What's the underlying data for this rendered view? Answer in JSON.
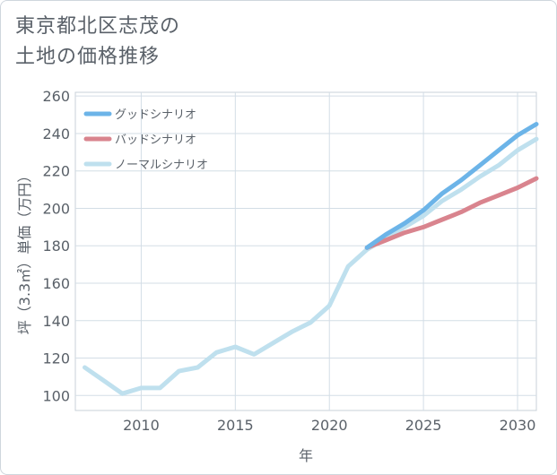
{
  "title_line1": "東京都北区志茂の",
  "title_line2": "土地の価格推移",
  "chart_data": {
    "type": "line",
    "xlabel": "年",
    "ylabel": "坪（3.3㎡）単価（万円）",
    "xlim": [
      2006.5,
      2031
    ],
    "ylim": [
      92,
      262
    ],
    "xticks": [
      2010,
      2015,
      2020,
      2025,
      2030
    ],
    "yticks": [
      100,
      120,
      140,
      160,
      180,
      200,
      220,
      240,
      260
    ],
    "legend_position": "top-left",
    "series": [
      {
        "name": "グッドシナリオ",
        "color": "#6cb4e8",
        "x": [
          2022,
          2023,
          2024,
          2025,
          2026,
          2027,
          2028,
          2029,
          2030,
          2031
        ],
        "values": [
          179,
          186,
          192,
          199,
          208,
          215,
          223,
          231,
          239,
          245
        ]
      },
      {
        "name": "バッドシナリオ",
        "color": "#d9848e",
        "x": [
          2022,
          2023,
          2024,
          2025,
          2026,
          2027,
          2028,
          2029,
          2030,
          2031
        ],
        "values": [
          179,
          183,
          187,
          190,
          194,
          198,
          203,
          207,
          211,
          216
        ]
      },
      {
        "name": "ノーマルシナリオ",
        "color": "#bfe0ee",
        "x": [
          2007,
          2008,
          2009,
          2010,
          2011,
          2012,
          2013,
          2014,
          2015,
          2016,
          2017,
          2018,
          2019,
          2020,
          2021,
          2022,
          2023,
          2024,
          2025,
          2026,
          2027,
          2028,
          2029,
          2030,
          2031
        ],
        "values": [
          115,
          108,
          101,
          104,
          104,
          113,
          115,
          123,
          126,
          122,
          128,
          134,
          139,
          148,
          169,
          178,
          184,
          190,
          196,
          204,
          210,
          217,
          223,
          231,
          237
        ]
      }
    ]
  }
}
